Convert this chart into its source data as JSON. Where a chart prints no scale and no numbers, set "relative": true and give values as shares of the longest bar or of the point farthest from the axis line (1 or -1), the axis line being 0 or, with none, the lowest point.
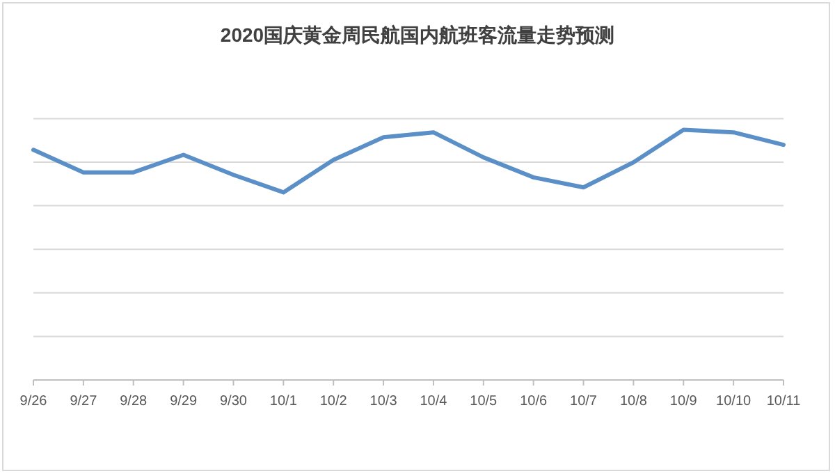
{
  "chart_data": {
    "type": "line",
    "title": "2020国庆黄金周民航国内航班客流量走势预测",
    "relative": true,
    "grid": "y",
    "marker": "none",
    "line_style": "solid",
    "categories": [
      "9/26",
      "9/27",
      "9/28",
      "9/29",
      "9/30",
      "10/1",
      "10/2",
      "10/3",
      "10/4",
      "10/5",
      "10/6",
      "10/7",
      "10/8",
      "10/9",
      "10/10",
      "10/11"
    ],
    "series": [
      {
        "color": "#5b8fc7",
        "values": [
          0.92,
          0.83,
          0.83,
          0.9,
          0.82,
          0.75,
          0.88,
          0.97,
          0.99,
          0.89,
          0.81,
          0.77,
          0.87,
          1,
          0.99,
          0.94
        ]
      }
    ]
  }
}
